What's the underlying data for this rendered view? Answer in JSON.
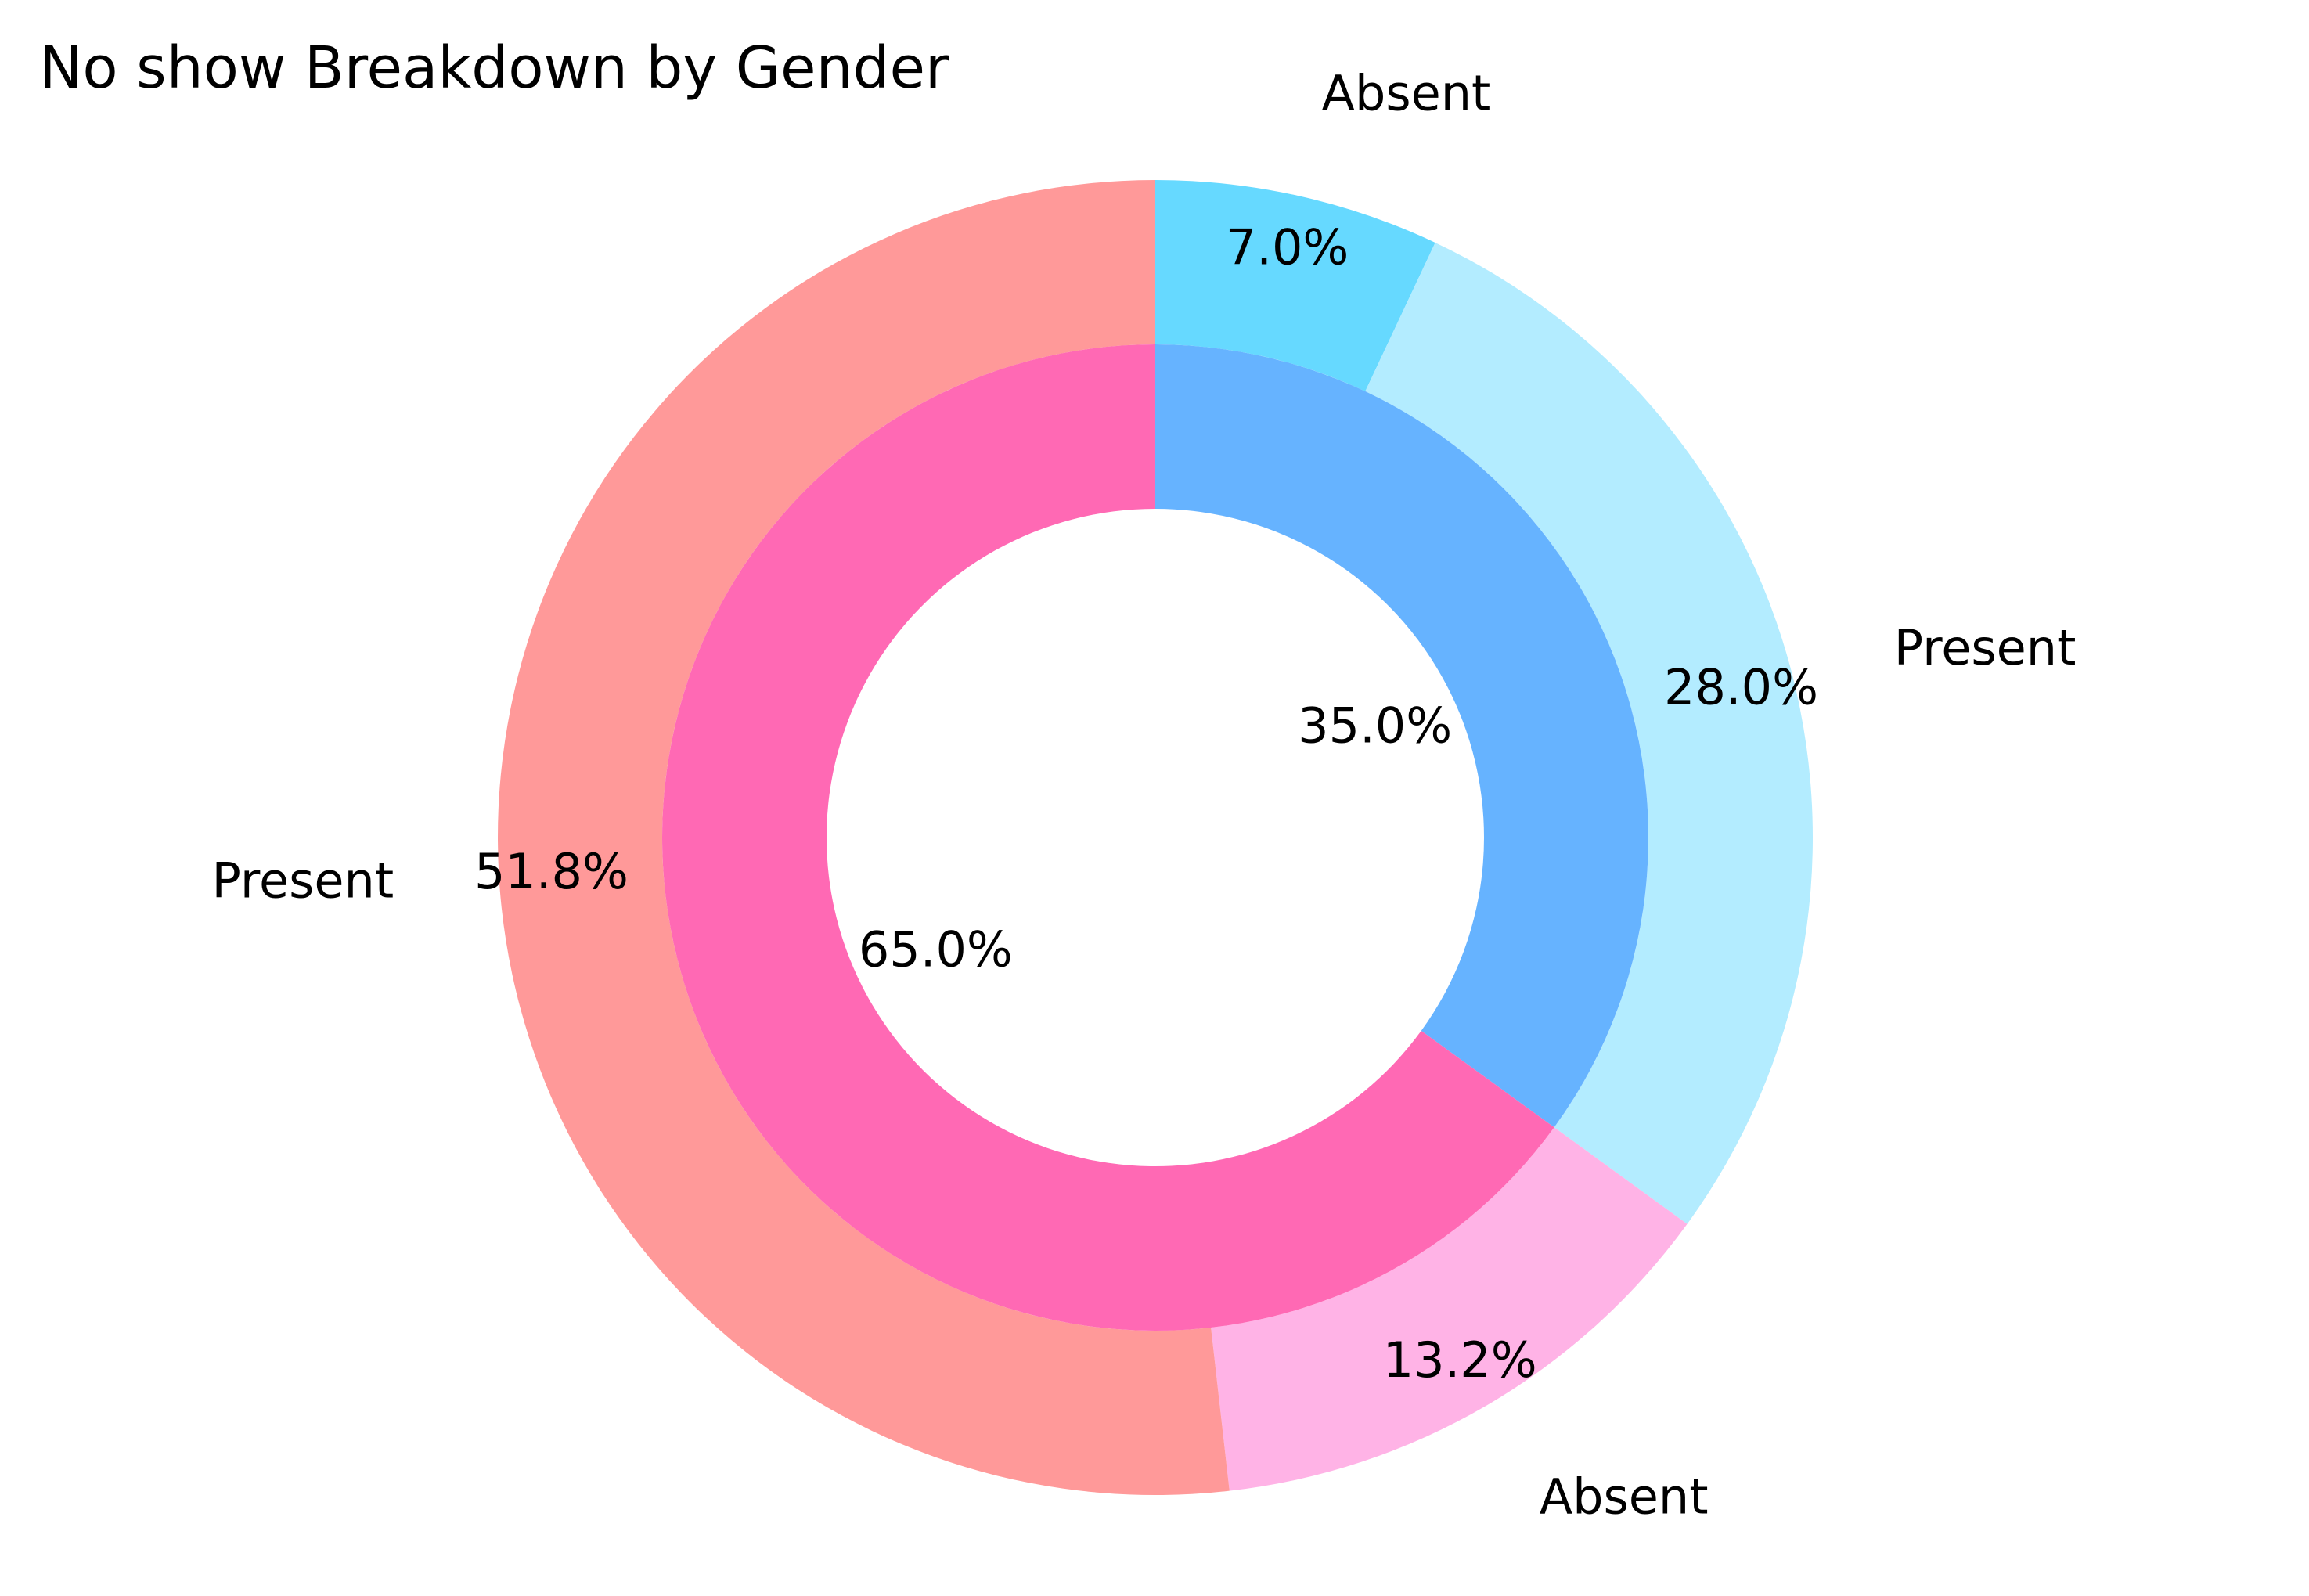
{
  "chart_data": {
    "type": "pie",
    "variant": "nested-donut",
    "title": "No show Breakdown by Gender",
    "start_angle_deg": 90,
    "direction": "clockwise",
    "inner_ring": {
      "slices": [
        {
          "value": 35.0,
          "pct_label": "35.0%",
          "color": "#66b3ff"
        },
        {
          "value": 65.0,
          "pct_label": "65.0%",
          "color": "#ff69b4"
        }
      ]
    },
    "outer_ring": {
      "slices": [
        {
          "label": "Absent",
          "value": 7.0,
          "pct_label": "7.0%",
          "color": "#66d9ff"
        },
        {
          "label": "Present",
          "value": 28.0,
          "pct_label": "28.0%",
          "color": "#b3ecff"
        },
        {
          "label": "Absent",
          "value": 13.2,
          "pct_label": "13.2%",
          "color": "#ffb3e6"
        },
        {
          "label": "Present",
          "value": 51.8,
          "pct_label": "51.8%",
          "color": "#ff9999"
        }
      ]
    }
  }
}
